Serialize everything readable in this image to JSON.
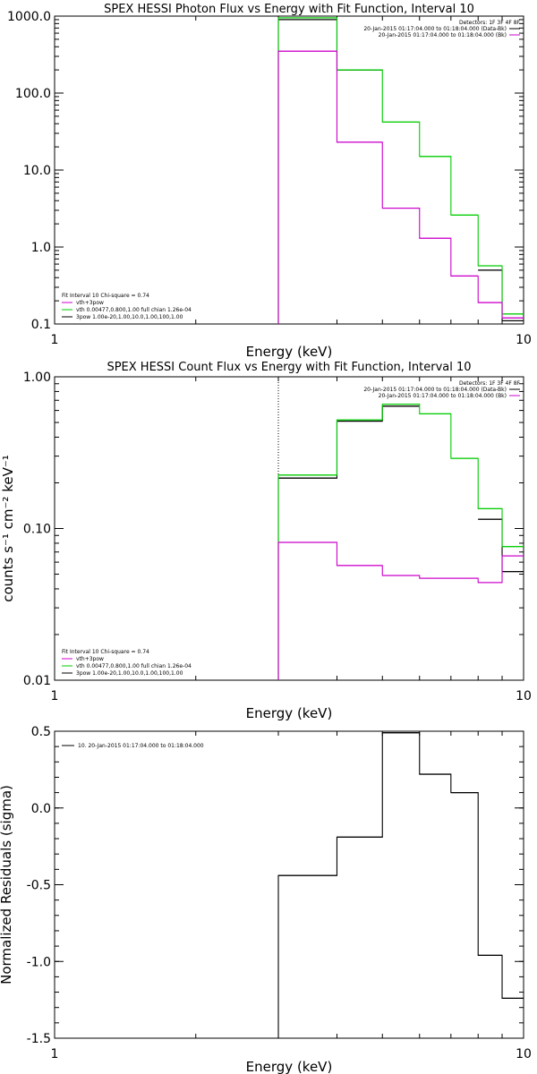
{
  "colors": {
    "black": "#000000",
    "green": "#00cc00",
    "magenta": "#cc00cc"
  },
  "chart_data": [
    {
      "type": "line",
      "title": "SPEX HESSI Photon Flux vs Energy with Fit Function, Interval 10",
      "xlabel": "Energy (keV)",
      "ylabel": "",
      "xscale": "log",
      "yscale": "log",
      "xlim": [
        1,
        10
      ],
      "ylim": [
        0.1,
        1000
      ],
      "xticks": [
        {
          "v": 1,
          "label": "1"
        },
        {
          "v": 10,
          "label": "10"
        }
      ],
      "yticks": [
        {
          "v": 1000,
          "label": "1000.0"
        },
        {
          "v": 100,
          "label": "100.0"
        },
        {
          "v": 10,
          "label": "10.0"
        },
        {
          "v": 1,
          "label": "1.0"
        },
        {
          "v": 0.1,
          "label": "0.1"
        }
      ],
      "bin_edges": [
        3,
        4,
        5,
        6,
        7,
        8,
        9,
        10
      ],
      "marker_x": 3,
      "series": [
        {
          "color": "black",
          "values": [
            900,
            200,
            null,
            null,
            null,
            0.5,
            0.11
          ]
        },
        {
          "color": "green",
          "values": [
            950,
            200,
            42,
            15,
            2.6,
            0.57,
            0.135
          ]
        },
        {
          "color": "magenta",
          "values": [
            350,
            23,
            3.2,
            1.3,
            0.42,
            0.19,
            0.12
          ]
        }
      ],
      "legend_top": {
        "position": "top-right",
        "header": "Detectors: 1F 3F 4F 8F",
        "entries": [
          {
            "text": "20-Jan-2015 01:17:04.000 to 01:18:04.000 (Data-Bk)",
            "color": "black"
          },
          {
            "text": "20-Jan-2015 01:17:04.000 to 01:18:04.000 (Bk)",
            "color": "magenta"
          }
        ]
      },
      "legend_bottom": {
        "position": "bottom-left",
        "header": "Fit Interval 10   Chi-square = 0.74",
        "entries": [
          {
            "text": "vth+3pow",
            "color": "magenta"
          },
          {
            "text": "vth 0.00477,0.800,1.00   full chian 1.26e-04",
            "color": "green"
          },
          {
            "text": "3pow 1.00e-20,1.00,10.0,1.00,100,1.00",
            "color": "black"
          }
        ]
      }
    },
    {
      "type": "line",
      "title": "SPEX HESSI Count Flux vs Energy with Fit Function, Interval 10",
      "xlabel": "Energy (keV)",
      "ylabel": "counts s⁻¹ cm⁻² keV⁻¹",
      "xscale": "log",
      "yscale": "log",
      "xlim": [
        1,
        10
      ],
      "ylim": [
        0.01,
        1.0
      ],
      "xticks": [
        {
          "v": 1,
          "label": "1"
        },
        {
          "v": 10,
          "label": "10"
        }
      ],
      "yticks": [
        {
          "v": 1,
          "label": "1.00"
        },
        {
          "v": 0.1,
          "label": "0.10"
        },
        {
          "v": 0.01,
          "label": "0.01"
        }
      ],
      "bin_edges": [
        3,
        4,
        5,
        6,
        7,
        8,
        9,
        10
      ],
      "marker_x": 3,
      "series": [
        {
          "color": "black",
          "values": [
            0.215,
            0.51,
            0.64,
            null,
            null,
            0.115,
            0.052
          ]
        },
        {
          "color": "green",
          "values": [
            0.225,
            0.52,
            0.66,
            0.57,
            0.29,
            0.135,
            0.076
          ]
        },
        {
          "color": "magenta",
          "values": [
            0.081,
            0.057,
            0.049,
            0.047,
            0.047,
            0.044,
            0.066
          ]
        }
      ],
      "legend_top": {
        "position": "top-right",
        "header": "Detectors: 1F 3F 4F 8F",
        "entries": [
          {
            "text": "20-Jan-2015 01:17:04.000 to 01:18:04.000 (Data-Bk)",
            "color": "black"
          },
          {
            "text": "20-Jan-2015 01:17:04.000 to 01:18:04.000 (Bk)",
            "color": "magenta"
          }
        ]
      },
      "legend_bottom": {
        "position": "bottom-left",
        "header": "Fit Interval 10   Chi-square = 0.74",
        "entries": [
          {
            "text": "vth+3pow",
            "color": "magenta"
          },
          {
            "text": "vth 0.00477,0.800,1.00   full chian 1.26e-04",
            "color": "green"
          },
          {
            "text": "3pow 1.00e-20,1.00,10.0,1.00,100,1.00",
            "color": "black"
          }
        ]
      }
    },
    {
      "type": "line",
      "title": "",
      "xlabel": "Energy (keV)",
      "ylabel": "Normalized Residuals (sigma)",
      "xscale": "log",
      "yscale": "linear",
      "xlim": [
        1,
        10
      ],
      "ylim": [
        -1.5,
        0.5
      ],
      "xticks": [
        {
          "v": 1,
          "label": "1"
        },
        {
          "v": 10,
          "label": "10"
        }
      ],
      "yticks": [
        {
          "v": 0.5,
          "label": "0.5"
        },
        {
          "v": 0,
          "label": "0.0"
        },
        {
          "v": -0.5,
          "label": "-0.5"
        },
        {
          "v": -1,
          "label": "-1.0"
        },
        {
          "v": -1.5,
          "label": "-1.5"
        }
      ],
      "bin_edges": [
        3,
        4,
        5,
        6,
        7,
        8,
        9,
        10
      ],
      "series": [
        {
          "color": "black",
          "values": [
            -0.44,
            -0.19,
            0.49,
            0.22,
            0.1,
            -0.96,
            -1.24
          ]
        }
      ],
      "legend_top": {
        "position": "top-left",
        "header": "",
        "entries": [
          {
            "text": "10. 20-Jan-2015 01:17:04.000 to 01:18:04.000",
            "color": "black"
          }
        ]
      }
    }
  ]
}
